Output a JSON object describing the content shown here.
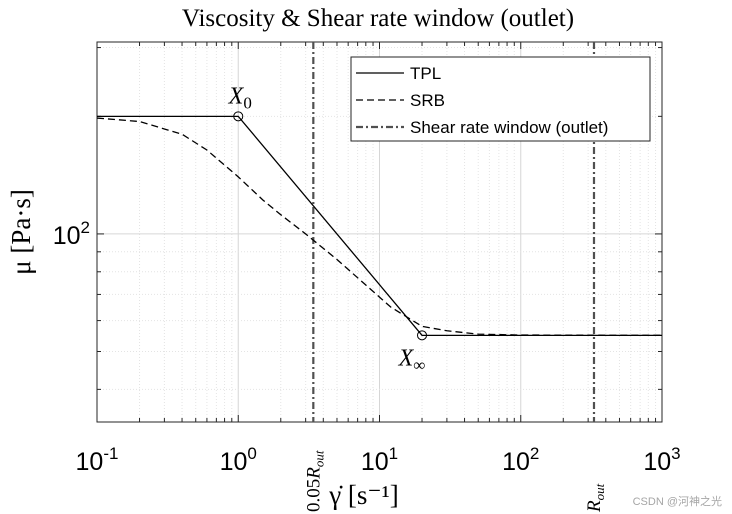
{
  "chart_data": {
    "type": "line",
    "title": "Viscosity & Shear rate window (outlet)",
    "xlabel": "γ̇ [s⁻¹]",
    "ylabel": "μ [Pa·s]",
    "xscale": "log",
    "yscale": "log",
    "xlim": [
      0.1,
      1000
    ],
    "ylim": [
      33,
      310
    ],
    "x_ticks": [
      {
        "value": 0.1,
        "base": "10",
        "exp": "-1"
      },
      {
        "value": 1,
        "base": "10",
        "exp": "0"
      },
      {
        "value": 10,
        "base": "10",
        "exp": "1"
      },
      {
        "value": 100,
        "base": "10",
        "exp": "2"
      },
      {
        "value": 1000,
        "base": "10",
        "exp": "3"
      }
    ],
    "y_ticks": [
      {
        "value": 100,
        "base": "10",
        "exp": "2"
      }
    ],
    "grid": true,
    "minor_grid": true,
    "series": [
      {
        "name": "TPL",
        "style": "solid",
        "color": "#000000",
        "x": [
          0.1,
          1,
          20,
          1000
        ],
        "y": [
          200,
          200,
          55,
          55
        ]
      },
      {
        "name": "SRB",
        "style": "dashed",
        "color": "#000000",
        "x": [
          0.1,
          0.2,
          0.4,
          0.6,
          1,
          1.5,
          2,
          3,
          5,
          8,
          12,
          20,
          30,
          50,
          100,
          1000
        ],
        "y": [
          198,
          194,
          180,
          164,
          140,
          122,
          112,
          100,
          86,
          74,
          65,
          58,
          56.5,
          55.4,
          55.1,
          55
        ]
      },
      {
        "name": "Shear rate window (outlet)",
        "style": "dashdot",
        "color": "#505050",
        "vlines": [
          3.4,
          330
        ]
      }
    ],
    "markers": [
      {
        "name": "X_0",
        "label_base": "X",
        "label_sub": "0",
        "x": 1,
        "y": 200
      },
      {
        "name": "X_inf",
        "label_base": "X",
        "label_sub": "∞",
        "x": 20,
        "y": 55
      }
    ],
    "vline_labels": [
      {
        "x": 3.4,
        "label_prefix": "0.05",
        "label_main": "R",
        "label_sub": "out"
      },
      {
        "x": 330,
        "label_prefix": "",
        "label_main": "R",
        "label_sub": "out"
      }
    ],
    "legend": {
      "position": "top-right",
      "entries": [
        "TPL",
        "SRB",
        "Shear rate window (outlet)"
      ]
    }
  },
  "watermark": "CSDN @河神之光"
}
